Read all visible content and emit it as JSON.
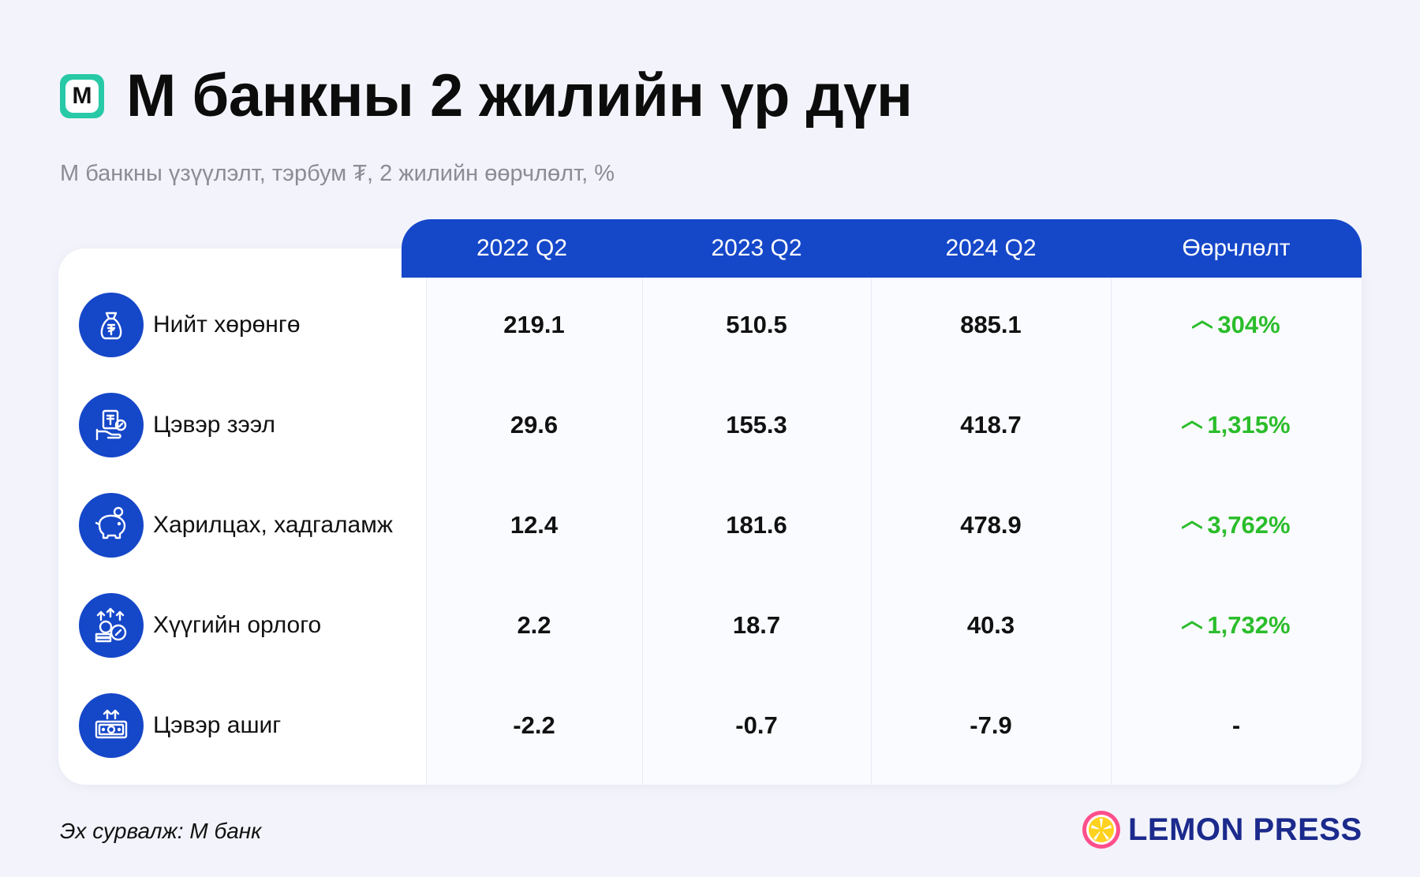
{
  "header": {
    "logo_letter": "М",
    "title": "М банкны 2 жилийн үр дүн",
    "subtitle": "М банкны үзүүлэлт, тэрбум ₮, 2 жилийн өөрчлөлт, %"
  },
  "table": {
    "columns": [
      "2022 Q2",
      "2023 Q2",
      "2024 Q2",
      "Өөрчлөлт"
    ],
    "rows": [
      {
        "icon": "money-bag-icon",
        "label": "Нийт хөрөнгө",
        "values": [
          "219.1",
          "510.5",
          "885.1"
        ],
        "change": "304%",
        "trend": "up"
      },
      {
        "icon": "loan-hand-icon",
        "label": "Цэвэр зээл",
        "values": [
          "29.6",
          "155.3",
          "418.7"
        ],
        "change": "1,315%",
        "trend": "up"
      },
      {
        "icon": "piggy-bank-icon",
        "label": "Харилцах, хадгаламж",
        "values": [
          "12.4",
          "181.6",
          "478.9"
        ],
        "change": "3,762%",
        "trend": "up"
      },
      {
        "icon": "interest-income-icon",
        "label": "Хүүгийн орлого",
        "values": [
          "2.2",
          "18.7",
          "40.3"
        ],
        "change": "1,732%",
        "trend": "up"
      },
      {
        "icon": "net-profit-icon",
        "label": "Цэвэр ашиг",
        "values": [
          "-2.2",
          "-0.7",
          "-7.9"
        ],
        "change": "-",
        "trend": "none"
      }
    ]
  },
  "footer": {
    "source": "Эх сурвалж: М банк",
    "brand": "LEMON PRESS"
  },
  "colors": {
    "header_blue": "#1547c9",
    "icon_blue": "#1547c9",
    "positive_green": "#2bbd2b",
    "logo_teal": "#27c9a6",
    "brand_navy": "#1b2a8c",
    "background": "#f3f4fb"
  }
}
